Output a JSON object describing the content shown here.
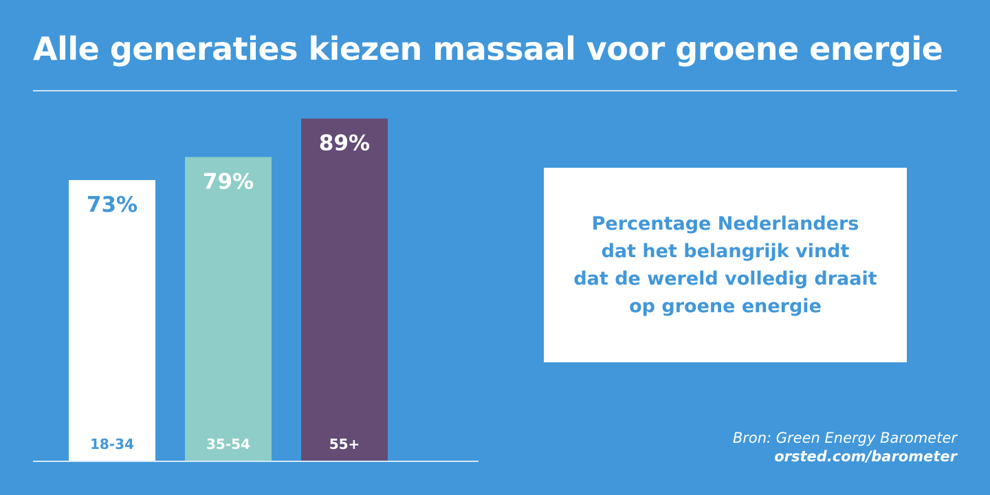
{
  "chart_data": {
    "type": "bar",
    "title": "Alle generaties kiezen massaal voor groene energie",
    "categories": [
      "18-34",
      "35-54",
      "55+"
    ],
    "values": [
      73,
      79,
      89
    ],
    "data_labels": [
      "73%",
      "79%",
      "89%"
    ],
    "ylim": [
      0,
      100
    ],
    "grid": false,
    "colors": [
      "#ffffff",
      "#8ecdc8",
      "#644c75"
    ],
    "label_colors": [
      "#4197da",
      "#ffffff",
      "#ffffff"
    ]
  },
  "note": "Percentage Nederlanders\ndat het belangrijk vindt\ndat de wereld volledig draait\nop groene energie",
  "source": {
    "label": "Bron: Green Energy Barometer",
    "url": "orsted.com/barometer"
  },
  "colors": {
    "background": "#4197da",
    "text_accent": "#4197da"
  }
}
